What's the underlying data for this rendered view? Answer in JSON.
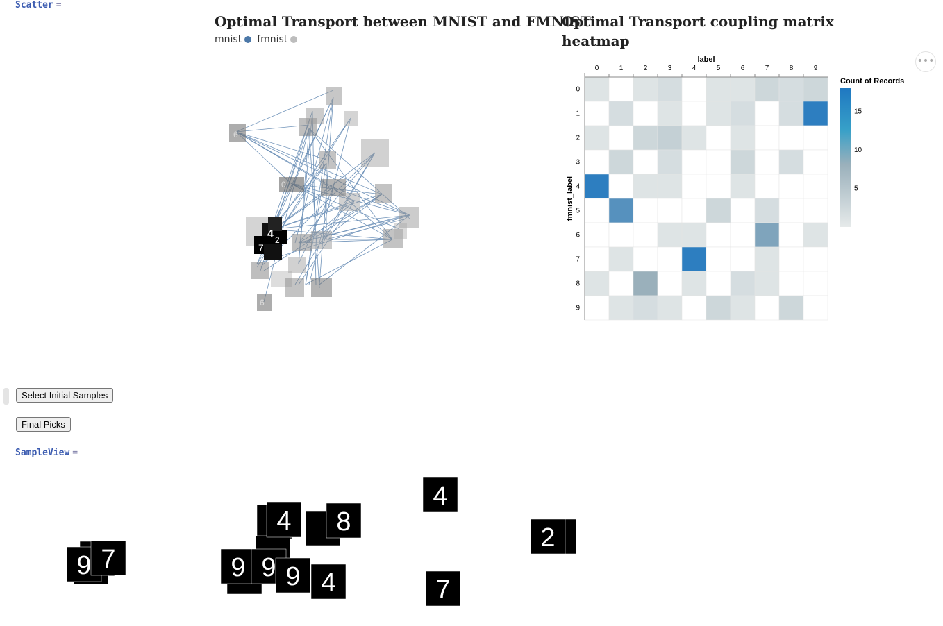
{
  "notebook": {
    "scatter_label": "Scatter",
    "scatter_eq": "=",
    "sampleview_label": "SampleView",
    "sampleview_eq": "=",
    "buttons": {
      "select_initial": "Select Initial Samples",
      "final_picks": "Final Picks"
    },
    "more_icon": "ellipsis-icon"
  },
  "scatter_panel": {
    "title": "Optimal Transport between MNIST and FMNIST",
    "legend": [
      {
        "label": "mnist",
        "color": "#4c78a8"
      },
      {
        "label": "fmnist",
        "color": "#bdbdbd"
      }
    ]
  },
  "heatmap_panel": {
    "title_line1": "Optimal Transport coupling matrix",
    "title_line2": "heatmap"
  },
  "chart_data": {
    "type": "heatmap",
    "x_title": "label",
    "y_title": "fmnist_label",
    "x": [
      0,
      1,
      2,
      3,
      4,
      5,
      6,
      7,
      8,
      9
    ],
    "y": [
      0,
      1,
      2,
      3,
      4,
      5,
      6,
      7,
      8,
      9
    ],
    "legend_title": "Count of Records",
    "legend_ticks": [
      5,
      10,
      15
    ],
    "color_domain": [
      0,
      18
    ],
    "colors": {
      "low": "#e6eaea",
      "mid": "#9ab0bb",
      "high": "#1f78c1"
    },
    "values": [
      [
        1,
        0,
        1,
        2,
        0,
        1,
        1,
        3,
        2,
        3
      ],
      [
        0,
        2,
        0,
        1,
        0,
        1,
        2,
        0,
        2,
        17
      ],
      [
        1,
        0,
        3,
        4,
        1,
        0,
        1,
        0,
        0,
        0
      ],
      [
        0,
        3,
        0,
        2,
        0,
        0,
        3,
        0,
        2,
        0
      ],
      [
        17,
        0,
        1,
        1,
        0,
        0,
        1,
        0,
        0,
        0
      ],
      [
        0,
        14,
        0,
        0,
        0,
        3,
        0,
        2,
        0,
        0
      ],
      [
        0,
        0,
        0,
        1,
        1,
        0,
        0,
        11,
        0,
        1
      ],
      [
        0,
        1,
        0,
        0,
        17,
        0,
        0,
        1,
        0,
        0
      ],
      [
        1,
        0,
        9,
        0,
        1,
        0,
        2,
        1,
        0,
        0
      ],
      [
        0,
        1,
        2,
        1,
        0,
        3,
        1,
        0,
        3,
        0
      ]
    ]
  },
  "sample_digits": [
    "9",
    "7",
    "4",
    "8",
    "9",
    "9",
    "9",
    "4",
    "4",
    "2",
    "7"
  ]
}
